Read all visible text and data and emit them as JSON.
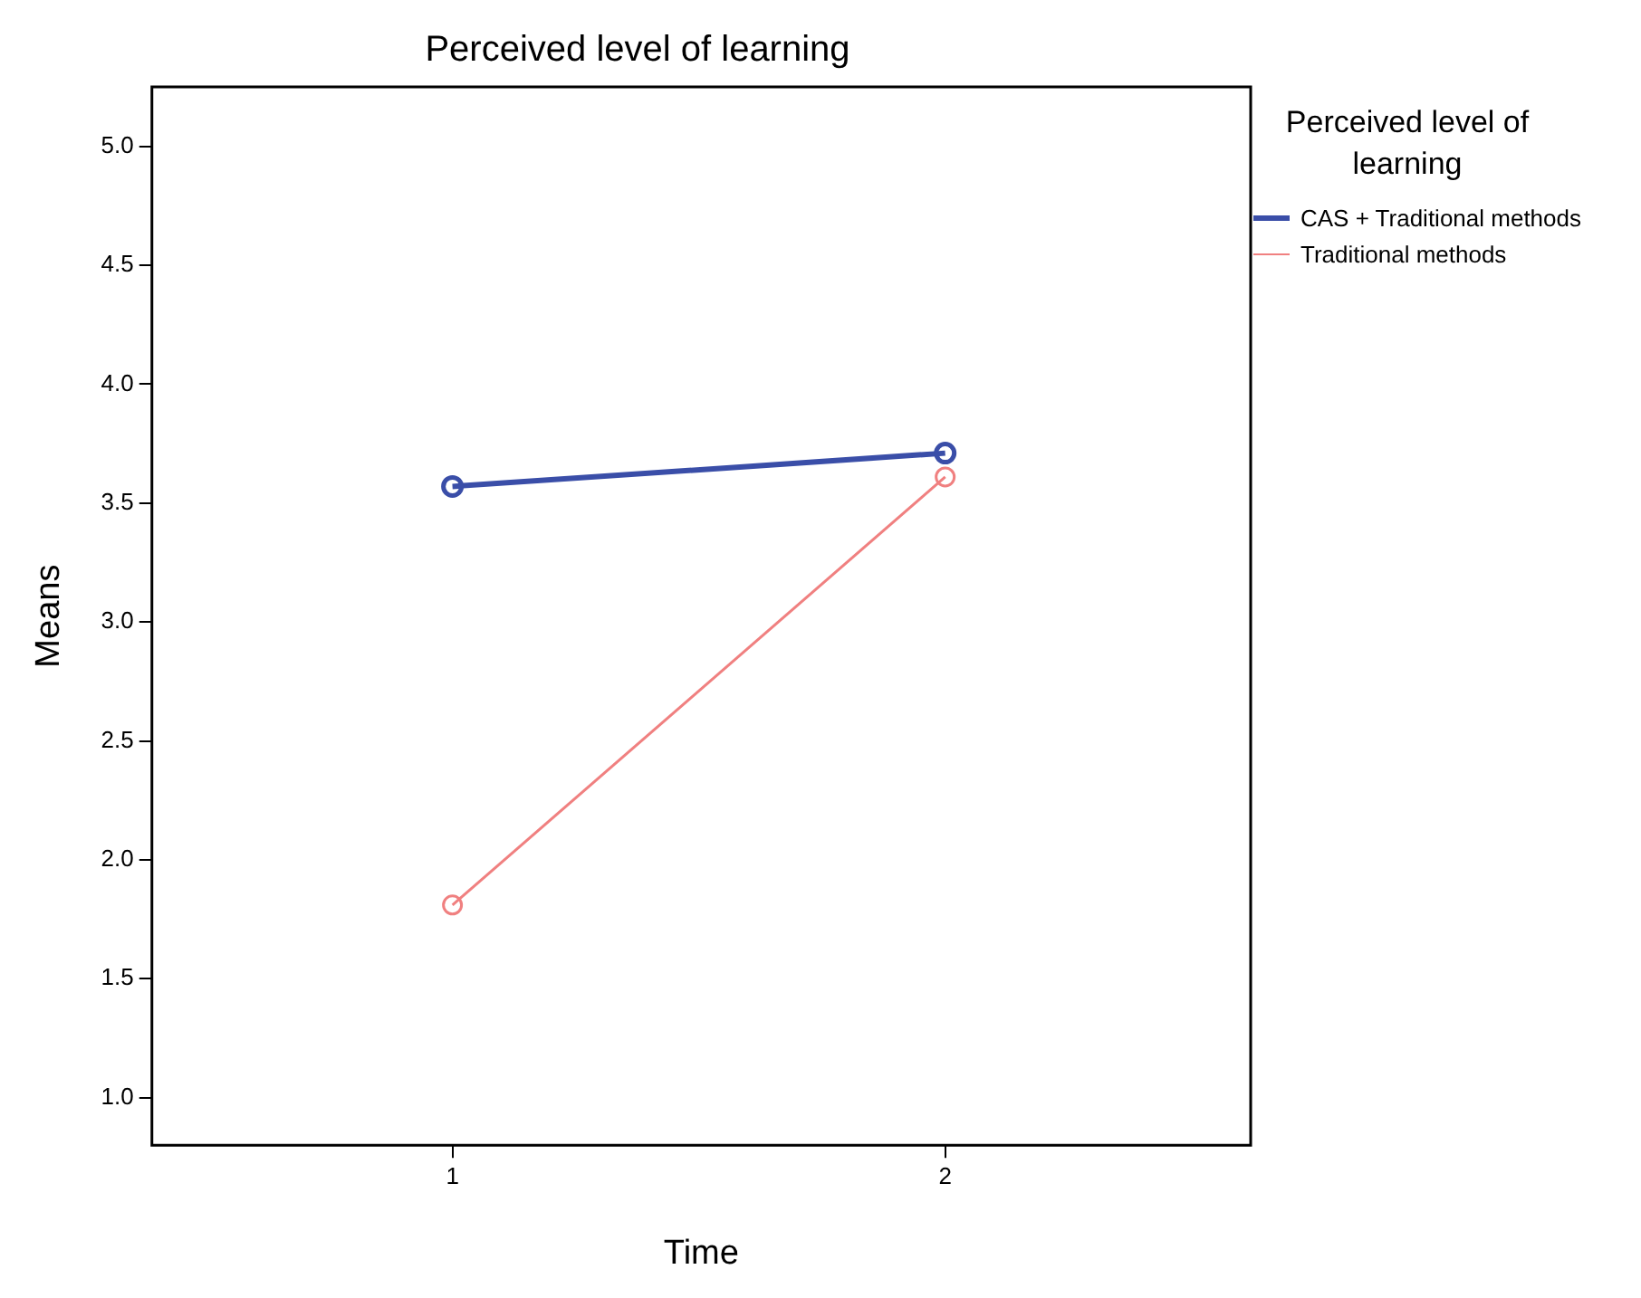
{
  "chart_data": {
    "type": "line",
    "title": "Perceived level of learning",
    "xlabel": "Time",
    "ylabel": "Means",
    "legend_title": "Perceived level of learning",
    "x": [
      1,
      2
    ],
    "series": [
      {
        "name": "CAS + Traditional methods",
        "color": "#3a4ea8",
        "values": [
          3.57,
          3.71
        ]
      },
      {
        "name": "Traditional methods",
        "color": "#f08080",
        "values": [
          1.81,
          3.61
        ]
      }
    ],
    "xlim": [
      0.39,
      2.62
    ],
    "xticks": [
      1,
      2
    ],
    "ylim": [
      0.8,
      5.25
    ],
    "yticks": [
      {
        "value": 1,
        "label": "1.0"
      },
      1.5,
      {
        "value": 2,
        "label": "2.0"
      },
      2.5,
      {
        "value": 3,
        "label": "3.0"
      },
      3.5,
      {
        "value": 4,
        "label": "4.0"
      },
      4.5,
      {
        "value": 5,
        "label": "5.0"
      }
    ],
    "grid": false,
    "legend": "right",
    "marker": "circle",
    "line_style": "solid"
  }
}
